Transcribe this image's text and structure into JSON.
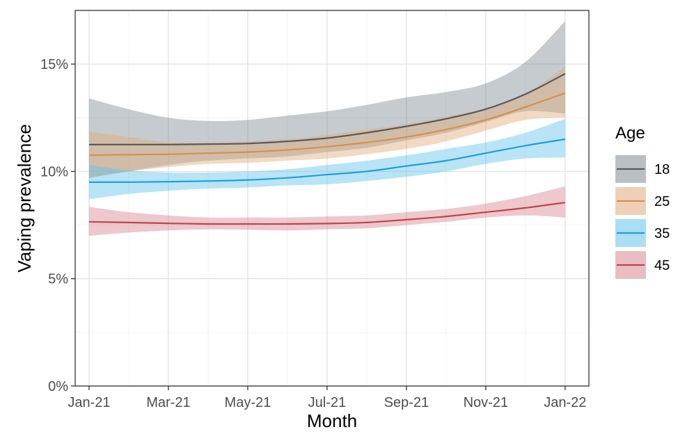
{
  "chart_data": {
    "type": "line",
    "title": "",
    "xlabel": "Month",
    "ylabel": "Vaping prevalence",
    "x_ticks": [
      "Jan-21",
      "Mar-21",
      "May-21",
      "Jul-21",
      "Sep-21",
      "Nov-21",
      "Jan-22"
    ],
    "y_ticks": [
      "0%",
      "5%",
      "10%",
      "15%"
    ],
    "ylim": [
      0,
      17.5
    ],
    "xlim": [
      -0.35,
      12.6
    ],
    "grid": true,
    "legend": {
      "title": "Age",
      "placement": "right"
    },
    "x": [
      0,
      1,
      2,
      3,
      4,
      5,
      6,
      7,
      8,
      9,
      10,
      11,
      12
    ],
    "series": [
      {
        "name": "18",
        "color": "#5a5a5a",
        "band_color": "#7f8c93",
        "values": [
          11.25,
          11.25,
          11.25,
          11.27,
          11.3,
          11.4,
          11.55,
          11.8,
          12.1,
          12.45,
          12.9,
          13.6,
          14.55
        ],
        "lower": [
          9.7,
          10.0,
          10.3,
          10.5,
          10.6,
          10.7,
          10.9,
          11.1,
          11.45,
          11.8,
          12.3,
          12.8,
          12.7
        ],
        "upper": [
          13.4,
          12.9,
          12.5,
          12.35,
          12.4,
          12.6,
          12.8,
          13.1,
          13.45,
          13.7,
          14.1,
          15.1,
          17.0
        ]
      },
      {
        "name": "25",
        "color": "#d4904f",
        "band_color": "#e0aa7a",
        "values": [
          10.75,
          10.78,
          10.8,
          10.85,
          10.9,
          11.0,
          11.15,
          11.35,
          11.6,
          11.95,
          12.4,
          13.0,
          13.65
        ],
        "lower": [
          9.7,
          10.0,
          10.2,
          10.35,
          10.4,
          10.5,
          10.6,
          10.8,
          11.05,
          11.4,
          11.9,
          12.4,
          12.5
        ],
        "upper": [
          11.85,
          11.6,
          11.35,
          11.35,
          11.4,
          11.5,
          11.7,
          11.95,
          12.2,
          12.55,
          12.95,
          13.6,
          14.9
        ]
      },
      {
        "name": "35",
        "color": "#1f9fd4",
        "band_color": "#62c3ea",
        "values": [
          9.5,
          9.5,
          9.52,
          9.55,
          9.6,
          9.7,
          9.85,
          10.0,
          10.25,
          10.5,
          10.85,
          11.2,
          11.5
        ],
        "lower": [
          8.7,
          8.95,
          9.1,
          9.2,
          9.25,
          9.35,
          9.4,
          9.55,
          9.75,
          10.0,
          10.35,
          10.6,
          10.65
        ],
        "upper": [
          10.3,
          10.05,
          9.95,
          9.95,
          10.0,
          10.1,
          10.3,
          10.5,
          10.75,
          11.05,
          11.35,
          11.8,
          12.45
        ]
      },
      {
        "name": "45",
        "color": "#c0444a",
        "band_color": "#d88690",
        "values": [
          7.65,
          7.62,
          7.58,
          7.55,
          7.55,
          7.55,
          7.57,
          7.62,
          7.75,
          7.9,
          8.1,
          8.3,
          8.55
        ],
        "lower": [
          7.0,
          7.15,
          7.25,
          7.3,
          7.28,
          7.25,
          7.3,
          7.35,
          7.5,
          7.65,
          7.85,
          7.95,
          7.85
        ],
        "upper": [
          8.35,
          8.1,
          7.95,
          7.85,
          7.85,
          7.85,
          7.9,
          7.95,
          8.1,
          8.25,
          8.5,
          8.85,
          9.3
        ]
      }
    ]
  }
}
